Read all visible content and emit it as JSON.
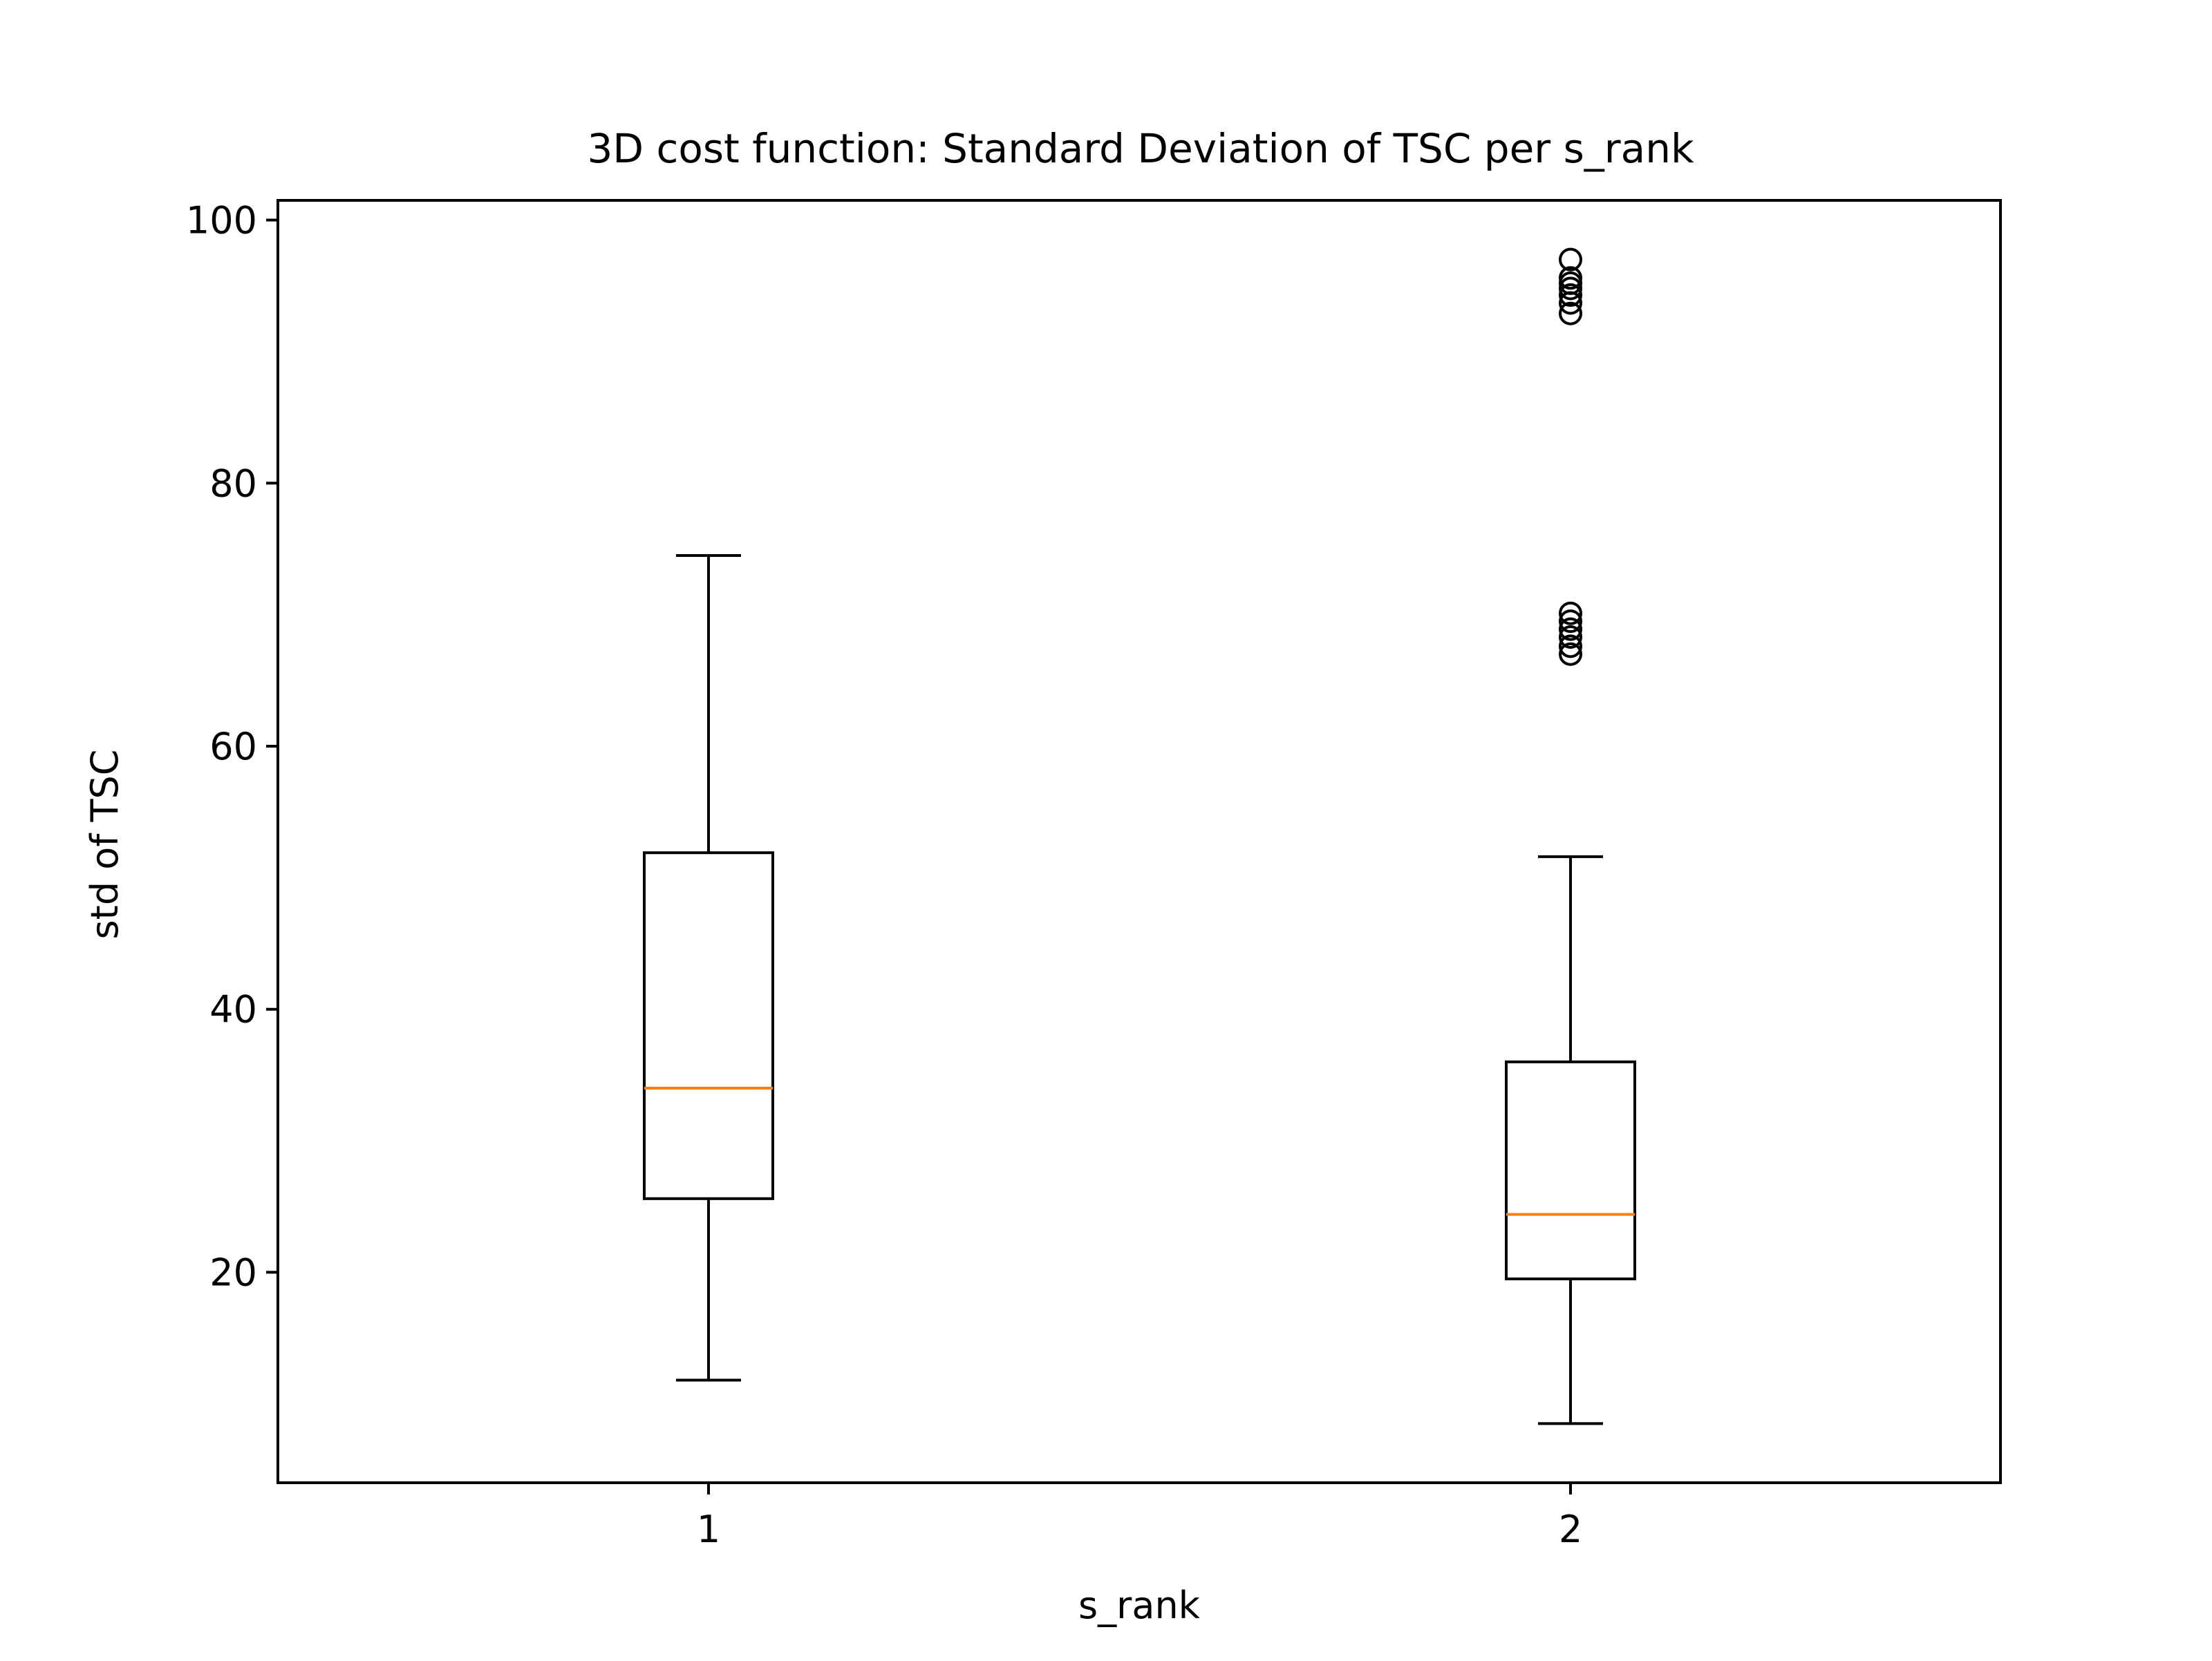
{
  "chart_data": {
    "type": "box",
    "title": "3D cost function: Standard Deviation of TSC per s_rank",
    "xlabel": "s_rank",
    "ylabel": "std of TSC",
    "categories": [
      "1",
      "2"
    ],
    "ylim": [
      4.0,
      101.5
    ],
    "yticks": [
      20,
      40,
      60,
      80,
      100
    ],
    "grid": false,
    "boxes": [
      {
        "category": "1",
        "whisker_low": 11.8,
        "q1": 25.6,
        "median": 34.0,
        "q3": 51.9,
        "whisker_high": 74.5,
        "outliers": []
      },
      {
        "category": "2",
        "whisker_low": 8.5,
        "q1": 19.5,
        "median": 24.4,
        "q3": 36.0,
        "whisker_high": 51.6,
        "outliers": [
          67.0,
          67.6,
          68.3,
          68.9,
          69.5,
          70.1,
          92.9,
          93.7,
          94.3,
          94.8,
          95.2,
          95.6,
          97.0
        ]
      }
    ],
    "colors": {
      "box": "#000000",
      "median": "#ff7f0e",
      "outlier": "#000000"
    }
  }
}
